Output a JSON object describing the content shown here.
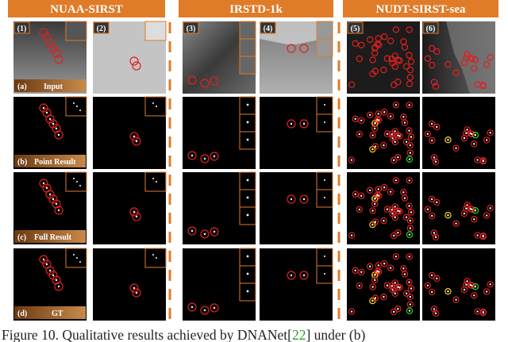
{
  "headers": [
    "NUAA-SIRST",
    "IRSTD-1k",
    "NUDT-SIRST-sea"
  ],
  "panels": [
    "(1)",
    "(2)",
    "(3)",
    "(4)",
    "(5)",
    "(6)"
  ],
  "rows": [
    {
      "tag": "(a)",
      "label": "Input"
    },
    {
      "tag": "(b)",
      "label": "Point Result"
    },
    {
      "tag": "(c)",
      "label": "Full Result"
    },
    {
      "tag": "(d)",
      "label": "GT"
    }
  ],
  "caption": {
    "prefix": "Figure 10. Qualitative results achieved by DNANet[",
    "ref": "22",
    "suffix": "] under (b)"
  }
}
